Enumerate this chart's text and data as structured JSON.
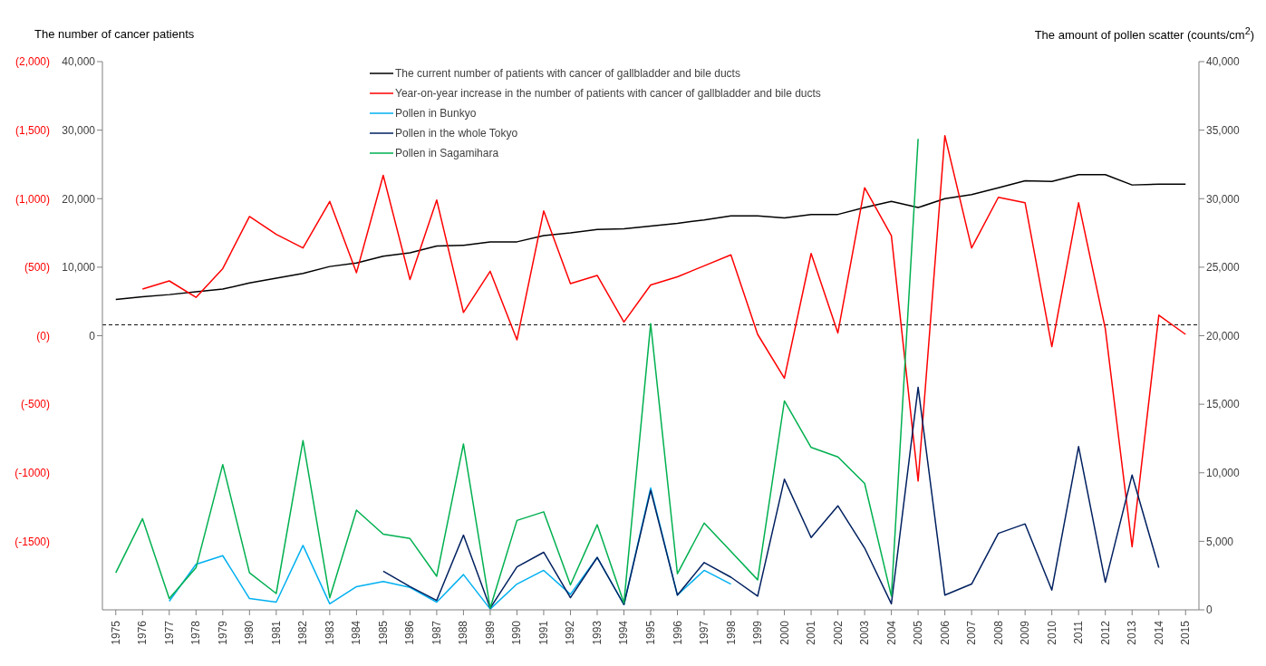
{
  "chart_data": {
    "type": "line",
    "ylabel": "The number of cancer patients",
    "y2label": "The amount of pollen scatter (counts/cm$^{2}$)",
    "x": [
      1975,
      1976,
      1977,
      1978,
      1979,
      1980,
      1981,
      1982,
      1983,
      1984,
      1985,
      1986,
      1987,
      1988,
      1989,
      1990,
      1991,
      1992,
      1993,
      1994,
      1995,
      1996,
      1997,
      1998,
      1999,
      2000,
      2001,
      2002,
      2003,
      2004,
      2005,
      2006,
      2007,
      2008,
      2009,
      2010,
      2011,
      2012,
      2013,
      2014,
      2015
    ],
    "xlim": [
      1974.5,
      2015.5
    ],
    "xticks": [
      1975,
      1976,
      1977,
      1978,
      1979,
      1980,
      1981,
      1982,
      1983,
      1984,
      1985,
      1986,
      1987,
      1988,
      1989,
      1990,
      1991,
      1992,
      1993,
      1994,
      1995,
      1996,
      1997,
      1998,
      1999,
      2000,
      2001,
      2002,
      2003,
      2004,
      2005,
      2006,
      2007,
      2008,
      2009,
      2010,
      2011,
      2012,
      2013,
      2014,
      2015
    ],
    "ylim": [
      -40000,
      40000
    ],
    "yticks": [
      {
        "value": 0,
        "label": "0"
      },
      {
        "value": 10000,
        "label": "10,000"
      },
      {
        "value": 20000,
        "label": "20,000"
      },
      {
        "value": 30000,
        "label": "30,000"
      },
      {
        "value": 40000,
        "label": "40,000"
      }
    ],
    "y3lim": [
      -2000,
      2000
    ],
    "y3ticks": [
      {
        "value": -1500,
        "label": "(-1500)"
      },
      {
        "value": -1000,
        "label": "(-1000)"
      },
      {
        "value": -500,
        "label": "(-500)"
      },
      {
        "value": 0,
        "label": "(0)"
      },
      {
        "value": 500,
        "label": "(500)"
      },
      {
        "value": 1000,
        "label": "(1,000)"
      },
      {
        "value": 1500,
        "label": "(1,500)"
      },
      {
        "value": 2000,
        "label": "(2,000)"
      }
    ],
    "y2lim": [
      0,
      40000
    ],
    "y2ticks": [
      {
        "value": 0,
        "label": "0"
      },
      {
        "value": 5000,
        "label": "5,000"
      },
      {
        "value": 10000,
        "label": "10,000"
      },
      {
        "value": 15000,
        "label": "15,000"
      },
      {
        "value": 20000,
        "label": "20,000"
      },
      {
        "value": 25000,
        "label": "25,000"
      },
      {
        "value": 30000,
        "label": "30,000"
      },
      {
        "value": 35000,
        "label": "35,000"
      },
      {
        "value": 40000,
        "label": "40,000"
      }
    ],
    "grid": false,
    "legend": "top",
    "marker": "none",
    "line_style": "solid",
    "ref_lines": [
      {
        "axis": "y3",
        "value": 80,
        "color": "#000000",
        "line_style": "dashed"
      }
    ],
    "series": [
      {
        "name": "The current number of patients with cancer of gallbladder and bile ducts",
        "color": "#000000",
        "values": [
          5300,
          5700,
          6000,
          6400,
          6800,
          7700,
          8400,
          9100,
          10100,
          10600,
          11600,
          12100,
          13100,
          13200,
          13700,
          13700,
          14600,
          15000,
          15500,
          15600,
          16000,
          16400,
          16900,
          17500,
          17500,
          17200,
          17700,
          17700,
          18700,
          19600,
          18700,
          20000,
          20600,
          21600,
          22600,
          22500,
          23500,
          23500,
          22000,
          22100,
          22100
        ]
      },
      {
        "name": "Year-on-year increase in the number of patients with cancer of gallbladder and bile ducts",
        "color": "#ff0000",
        "axis": "y3",
        "values": [
          null,
          340,
          400,
          280,
          490,
          870,
          740,
          640,
          980,
          460,
          1170,
          410,
          990,
          170,
          470,
          -30,
          910,
          380,
          440,
          100,
          370,
          430,
          510,
          590,
          10,
          -310,
          600,
          20,
          1080,
          730,
          -1060,
          1460,
          640,
          1010,
          970,
          -80,
          970,
          50,
          -1540,
          150,
          10
        ]
      },
      {
        "name": "Pollen in Bunkyo",
        "color": "#00b0f0",
        "axis": "y2",
        "values": [
          null,
          null,
          630,
          3320,
          3950,
          820,
          560,
          4700,
          440,
          1690,
          2070,
          1630,
          560,
          2570,
          60,
          1880,
          2880,
          1130,
          3820,
          380,
          8900,
          1070,
          2880,
          1880,
          null,
          null,
          null,
          null,
          null,
          null,
          null,
          null,
          null,
          null,
          null,
          null,
          null,
          null,
          null,
          null,
          null
        ]
      },
      {
        "name": "Pollen in the whole Tokyo",
        "color": "#002060",
        "axis": "y2",
        "values": [
          null,
          null,
          null,
          null,
          null,
          null,
          null,
          null,
          null,
          null,
          2820,
          1690,
          690,
          5450,
          130,
          3130,
          4200,
          880,
          3820,
          380,
          8720,
          1070,
          3450,
          2380,
          1000,
          9530,
          5270,
          7590,
          4510,
          440,
          16240,
          1070,
          1880,
          5580,
          6270,
          1440,
          11910,
          2010,
          9840,
          3070,
          null
        ]
      },
      {
        "name": "Pollen in Sagamihara",
        "color": "#00b050",
        "axis": "y2",
        "values": [
          2700,
          6650,
          820,
          3070,
          10600,
          2700,
          1190,
          12350,
          880,
          7270,
          5520,
          5200,
          2450,
          12100,
          130,
          6520,
          7150,
          1820,
          6210,
          500,
          20880,
          2630,
          6330,
          4260,
          2190,
          15240,
          11850,
          11160,
          9220,
          1000,
          34360,
          null,
          null,
          null,
          null,
          null,
          null,
          null,
          null,
          null,
          null
        ]
      }
    ]
  }
}
